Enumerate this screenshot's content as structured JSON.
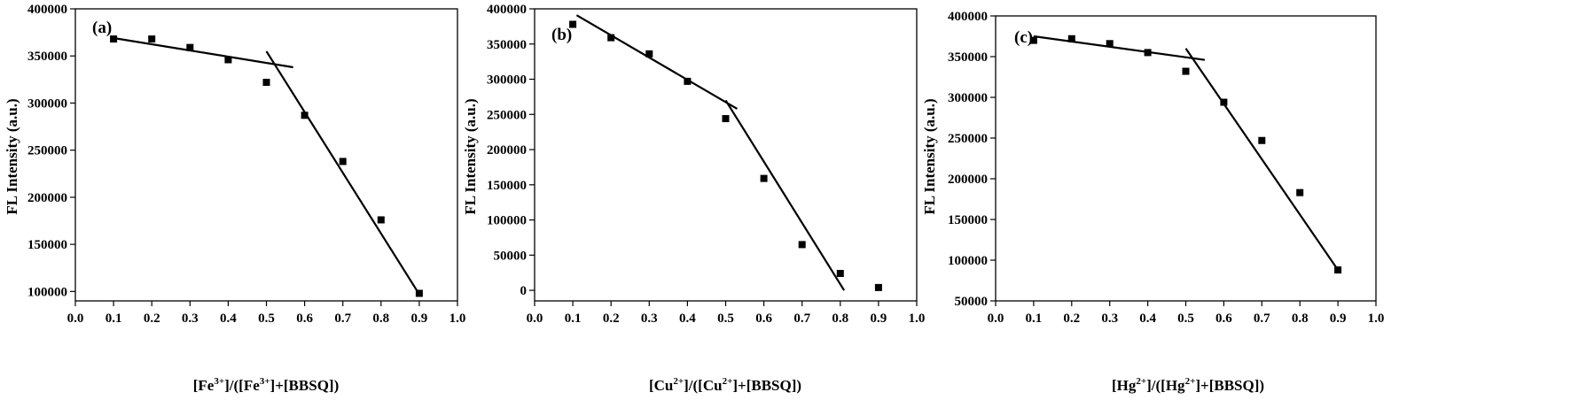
{
  "chart_data": [
    {
      "type": "scatter",
      "panel_label": "(a)",
      "ylabel": "FL Intensity (a.u.)",
      "xlabel_parts": [
        "[Fe",
        "3+",
        "]/([Fe",
        "3+",
        "]+[BBSQ])"
      ],
      "xlim": [
        0.0,
        1.0
      ],
      "ylim": [
        90000,
        400000
      ],
      "xticks": [
        "0.0",
        "0.1",
        "0.2",
        "0.3",
        "0.4",
        "0.5",
        "0.6",
        "0.7",
        "0.8",
        "0.9",
        "1.0"
      ],
      "yticks": [
        "100000",
        "150000",
        "200000",
        "250000",
        "300000",
        "350000",
        "400000"
      ],
      "x": [
        0.1,
        0.2,
        0.3,
        0.4,
        0.5,
        0.6,
        0.7,
        0.8,
        0.9
      ],
      "y": [
        368000,
        368000,
        359000,
        346000,
        322000,
        287000,
        238000,
        176000,
        98000
      ],
      "fit_lines": [
        {
          "x": [
            0.1,
            0.57
          ],
          "y": [
            369000,
            338000
          ]
        },
        {
          "x": [
            0.5,
            0.9
          ],
          "y": [
            355000,
            97000
          ]
        }
      ]
    },
    {
      "type": "scatter",
      "panel_label": "(b)",
      "ylabel": "FL Intensity (a.u.)",
      "xlabel_parts": [
        "[Cu",
        "2+",
        "]/([Cu",
        "2+",
        "]+[BBSQ])"
      ],
      "xlim": [
        0.0,
        1.0
      ],
      "ylim": [
        -15000,
        400000
      ],
      "xticks": [
        "0.0",
        "0.1",
        "0.2",
        "0.3",
        "0.4",
        "0.5",
        "0.6",
        "0.7",
        "0.8",
        "0.9",
        "1.0"
      ],
      "yticks": [
        "0",
        "50000",
        "100000",
        "150000",
        "200000",
        "250000",
        "300000",
        "350000",
        "400000"
      ],
      "x": [
        0.1,
        0.2,
        0.3,
        0.4,
        0.5,
        0.6,
        0.7,
        0.8,
        0.9
      ],
      "y": [
        378000,
        359000,
        336000,
        297000,
        244000,
        159000,
        65000,
        24000,
        4000
      ],
      "fit_lines": [
        {
          "x": [
            0.11,
            0.53
          ],
          "y": [
            391000,
            258000
          ]
        },
        {
          "x": [
            0.5,
            0.81
          ],
          "y": [
            270000,
            0
          ]
        }
      ]
    },
    {
      "type": "scatter",
      "panel_label": "(c)",
      "ylabel": "FL Intensity (a.u.)",
      "xlabel_parts": [
        "[Hg",
        "2+",
        "]/([Hg",
        "2+",
        "]+[BBSQ])"
      ],
      "xlim": [
        0.0,
        1.0
      ],
      "ylim": [
        50000,
        400000
      ],
      "xticks": [
        "0.0",
        "0.1",
        "0.2",
        "0.3",
        "0.4",
        "0.5",
        "0.6",
        "0.7",
        "0.8",
        "0.9",
        "1.0"
      ],
      "yticks": [
        "50000",
        "100000",
        "150000",
        "200000",
        "250000",
        "300000",
        "350000",
        "400000"
      ],
      "x": [
        0.1,
        0.2,
        0.3,
        0.4,
        0.5,
        0.6,
        0.7,
        0.8,
        0.9
      ],
      "y": [
        370000,
        372000,
        366000,
        355000,
        332000,
        294000,
        247000,
        183000,
        88000
      ],
      "fit_lines": [
        {
          "x": [
            0.1,
            0.55
          ],
          "y": [
            375000,
            346000
          ]
        },
        {
          "x": [
            0.5,
            0.9
          ],
          "y": [
            360000,
            88000
          ]
        }
      ]
    }
  ]
}
